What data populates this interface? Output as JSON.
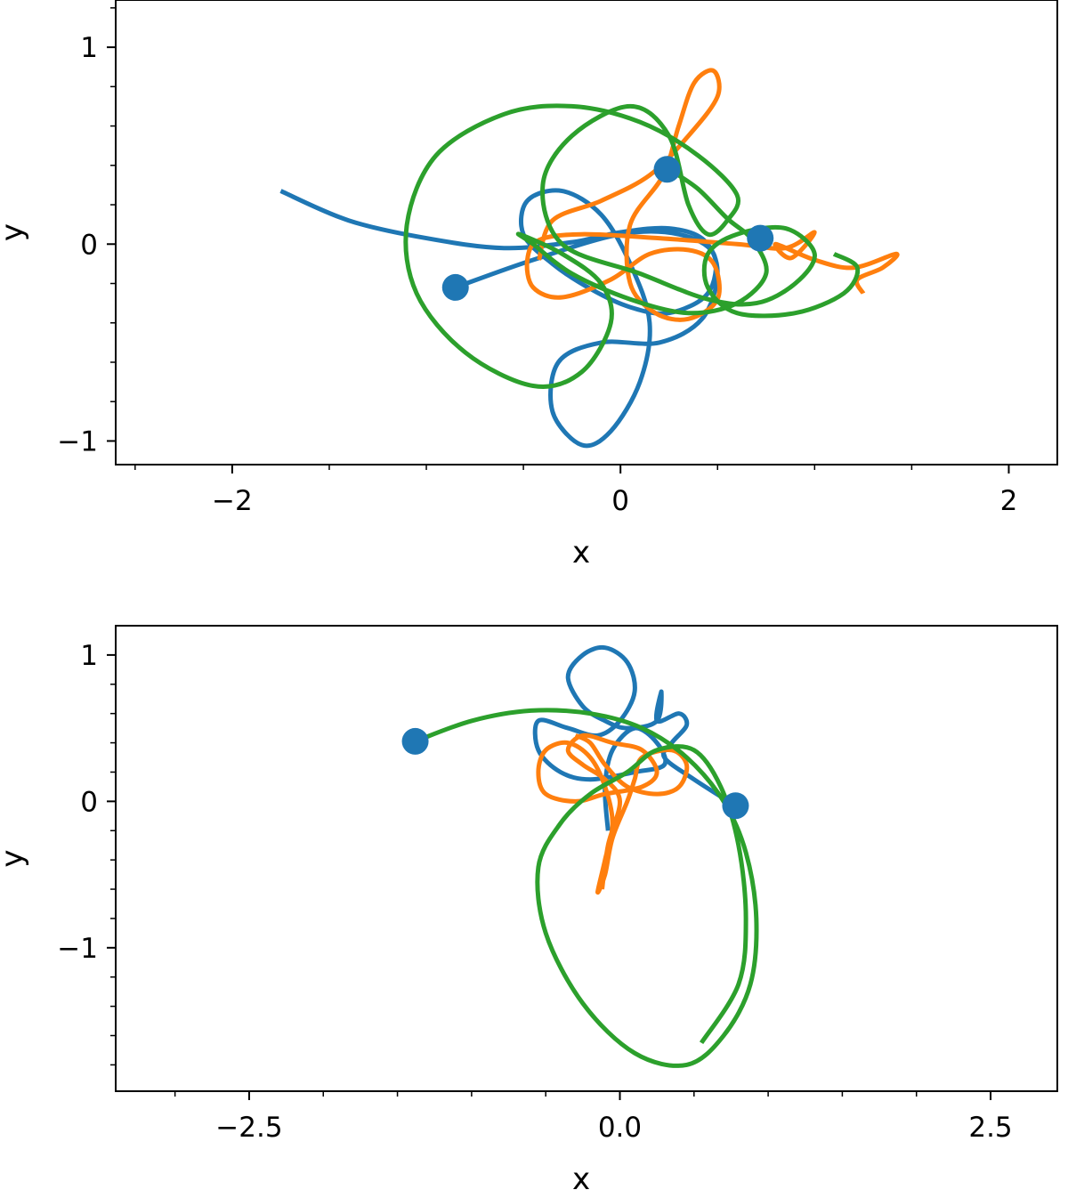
{
  "chart_data": [
    {
      "type": "line",
      "xlabel": "x",
      "ylabel": "y",
      "xlim": [
        -2.6,
        2.25
      ],
      "ylim": [
        -1.12,
        1.24
      ],
      "xticks": [
        {
          "v": -2,
          "label": "−2"
        },
        {
          "v": 0,
          "label": "0"
        },
        {
          "v": 2,
          "label": "2"
        }
      ],
      "yticks": [
        {
          "v": 1,
          "label": "1"
        },
        {
          "v": 0,
          "label": "0"
        },
        {
          "v": -1,
          "label": "−1"
        }
      ],
      "xminor": [
        -2.5,
        -1.5,
        -1,
        -0.5,
        0.5,
        1,
        1.5
      ],
      "yminor": [
        1.2,
        0.8,
        0.6,
        0.4,
        0.2,
        -0.2,
        -0.4,
        -0.6,
        -0.8
      ],
      "series": [
        {
          "color": "#1f77b4",
          "marker": [
            -0.85,
            -0.22
          ],
          "points": [
            [
              -0.85,
              -0.22
            ],
            [
              -0.45,
              -0.08
            ],
            [
              0,
              0.05
            ],
            [
              0.3,
              0.05
            ],
            [
              0.48,
              -0.05
            ],
            [
              0.45,
              -0.25
            ],
            [
              0.25,
              -0.35
            ],
            [
              0.05,
              -0.32
            ],
            [
              -0.15,
              -0.23
            ],
            [
              -0.35,
              -0.1
            ],
            [
              -0.5,
              0.05
            ],
            [
              -0.48,
              0.22
            ],
            [
              -0.3,
              0.27
            ],
            [
              -0.1,
              0.15
            ],
            [
              0.05,
              -0.1
            ],
            [
              0.15,
              -0.4
            ],
            [
              0.1,
              -0.7
            ],
            [
              -0.05,
              -0.95
            ],
            [
              -0.2,
              -1.02
            ],
            [
              -0.35,
              -0.85
            ],
            [
              -0.32,
              -0.6
            ],
            [
              -0.1,
              -0.5
            ],
            [
              0.2,
              -0.5
            ],
            [
              0.42,
              -0.38
            ],
            [
              0.5,
              -0.15
            ],
            [
              0.43,
              0.02
            ],
            [
              0.25,
              0.08
            ],
            [
              0,
              0.06
            ],
            [
              -0.25,
              0.01
            ],
            [
              -0.6,
              -0.02
            ],
            [
              -1.0,
              0.03
            ],
            [
              -1.4,
              0.12
            ],
            [
              -1.75,
              0.27
            ]
          ]
        },
        {
          "color": "#1f77b4",
          "marker": [
            0.24,
            0.38
          ],
          "points": []
        },
        {
          "color": "#1f77b4",
          "marker": [
            0.72,
            0.03
          ],
          "points": []
        },
        {
          "color": "#ff7f0e",
          "points": [
            [
              -0.42,
              -0.08
            ],
            [
              -0.35,
              0.12
            ],
            [
              -0.1,
              0.22
            ],
            [
              0.15,
              0.35
            ],
            [
              0.35,
              0.55
            ],
            [
              0.5,
              0.75
            ],
            [
              0.48,
              0.88
            ],
            [
              0.38,
              0.82
            ],
            [
              0.3,
              0.6
            ],
            [
              0.22,
              0.35
            ],
            [
              0.05,
              0.1
            ],
            [
              0.05,
              -0.2
            ],
            [
              0.18,
              -0.35
            ],
            [
              0.35,
              -0.38
            ],
            [
              0.5,
              -0.28
            ],
            [
              0.48,
              -0.1
            ],
            [
              0.35,
              -0.03
            ],
            [
              0.15,
              -0.05
            ],
            [
              -0.05,
              -0.18
            ],
            [
              -0.3,
              -0.27
            ],
            [
              -0.45,
              -0.22
            ],
            [
              -0.48,
              -0.08
            ],
            [
              -0.42,
              0.02
            ],
            [
              -0.2,
              0.05
            ],
            [
              0.2,
              0.03
            ],
            [
              0.6,
              0
            ],
            [
              0.85,
              -0.02
            ],
            [
              1.0,
              0.06
            ],
            [
              0.88,
              -0.07
            ],
            [
              0.8,
              0
            ],
            [
              1.0,
              -0.08
            ],
            [
              1.2,
              -0.12
            ],
            [
              1.42,
              -0.05
            ],
            [
              1.35,
              -0.12
            ],
            [
              1.22,
              -0.18
            ],
            [
              1.25,
              -0.25
            ]
          ]
        },
        {
          "color": "#2ca02c",
          "points": [
            [
              0.25,
              0.38
            ],
            [
              0.4,
              0.28
            ],
            [
              0.55,
              0.13
            ],
            [
              0.68,
              0.02
            ],
            [
              0.75,
              -0.15
            ],
            [
              0.6,
              -0.3
            ],
            [
              0.35,
              -0.35
            ],
            [
              0.05,
              -0.28
            ],
            [
              -0.25,
              -0.15
            ],
            [
              -0.45,
              0
            ],
            [
              -0.52,
              0.05
            ],
            [
              -0.3,
              -0.05
            ],
            [
              -0.1,
              -0.2
            ],
            [
              -0.05,
              -0.4
            ],
            [
              -0.2,
              -0.65
            ],
            [
              -0.45,
              -0.72
            ],
            [
              -0.8,
              -0.55
            ],
            [
              -1.05,
              -0.25
            ],
            [
              -1.1,
              0.1
            ],
            [
              -0.95,
              0.45
            ],
            [
              -0.6,
              0.66
            ],
            [
              -0.25,
              0.7
            ],
            [
              0.1,
              0.62
            ],
            [
              0.4,
              0.45
            ],
            [
              0.6,
              0.25
            ],
            [
              0.55,
              0.12
            ],
            [
              0.45,
              0.05
            ],
            [
              0.35,
              0.2
            ],
            [
              0.25,
              0.55
            ],
            [
              0.05,
              0.7
            ],
            [
              -0.25,
              0.55
            ],
            [
              -0.4,
              0.3
            ],
            [
              -0.3,
              0
            ],
            [
              0.1,
              -0.15
            ],
            [
              0.45,
              -0.28
            ],
            [
              0.7,
              -0.3
            ],
            [
              0.9,
              -0.2
            ],
            [
              1,
              -0.05
            ],
            [
              0.85,
              0.08
            ],
            [
              0.6,
              0.05
            ],
            [
              0.45,
              -0.05
            ],
            [
              0.45,
              -0.22
            ],
            [
              0.6,
              -0.35
            ],
            [
              0.9,
              -0.35
            ],
            [
              1.15,
              -0.25
            ],
            [
              1.22,
              -0.12
            ],
            [
              1.1,
              -0.05
            ]
          ]
        }
      ]
    },
    {
      "type": "line",
      "xlabel": "x",
      "ylabel": "y",
      "xlim": [
        -3.4,
        2.95
      ],
      "ylim": [
        -1.98,
        1.2
      ],
      "xticks": [
        {
          "v": -2.5,
          "label": "−2.5"
        },
        {
          "v": 0,
          "label": "0.0"
        },
        {
          "v": 2.5,
          "label": "2.5"
        }
      ],
      "yticks": [
        {
          "v": 1,
          "label": "1"
        },
        {
          "v": 0,
          "label": "0"
        },
        {
          "v": -1,
          "label": "−1"
        }
      ],
      "xminor": [
        -3,
        -2,
        -1.5,
        -1,
        -0.5,
        0.5,
        1,
        1.5,
        2
      ],
      "yminor": [
        0.8,
        0.6,
        0.4,
        0.2,
        -0.2,
        -0.4,
        -0.6,
        -0.8,
        -1.2,
        -1.4,
        -1.6,
        -1.8
      ],
      "series": [
        {
          "color": "#1f77b4",
          "marker": [
            0.78,
            -0.03
          ],
          "points": [
            [
              0.78,
              -0.03
            ],
            [
              0.5,
              0.15
            ],
            [
              0.3,
              0.3
            ],
            [
              0.35,
              0.4
            ],
            [
              0.45,
              0.52
            ],
            [
              0.4,
              0.6
            ],
            [
              0.25,
              0.55
            ],
            [
              0.28,
              0.75
            ],
            [
              0.25,
              0.55
            ],
            [
              0.05,
              0.5
            ],
            [
              -0.1,
              0.55
            ],
            [
              -0.25,
              0.65
            ],
            [
              -0.35,
              0.85
            ],
            [
              -0.25,
              1.0
            ],
            [
              -0.1,
              1.05
            ],
            [
              0.05,
              0.95
            ],
            [
              0.1,
              0.75
            ],
            [
              0,
              0.55
            ],
            [
              -0.15,
              0.45
            ],
            [
              -0.35,
              0.5
            ],
            [
              -0.55,
              0.55
            ],
            [
              -0.55,
              0.35
            ],
            [
              -0.4,
              0.2
            ],
            [
              -0.2,
              0.15
            ],
            [
              0.1,
              0.2
            ],
            [
              0.3,
              0.25
            ],
            [
              0.25,
              0.4
            ],
            [
              0.1,
              0.5
            ],
            [
              -0.05,
              0.35
            ],
            [
              -0.1,
              0.1
            ],
            [
              -0.08,
              -0.2
            ]
          ]
        },
        {
          "color": "#1f77b4",
          "marker": [
            -1.38,
            0.41
          ],
          "points": []
        },
        {
          "color": "#ff7f0e",
          "points": [
            [
              -0.12,
              -0.6
            ],
            [
              -0.08,
              -0.3
            ],
            [
              0,
              0
            ],
            [
              -0.1,
              0.15
            ],
            [
              -0.25,
              0.25
            ],
            [
              -0.35,
              0.35
            ],
            [
              -0.25,
              0.45
            ],
            [
              -0.05,
              0.4
            ],
            [
              0.15,
              0.35
            ],
            [
              0.25,
              0.2
            ],
            [
              0.15,
              0.1
            ],
            [
              -0.1,
              0.05
            ],
            [
              -0.3,
              0
            ],
            [
              -0.5,
              0.05
            ],
            [
              -0.55,
              0.2
            ],
            [
              -0.5,
              0.35
            ],
            [
              -0.35,
              0.4
            ],
            [
              -0.2,
              0.3
            ],
            [
              -0.1,
              0.1
            ],
            [
              -0.05,
              -0.15
            ],
            [
              -0.1,
              -0.4
            ],
            [
              -0.15,
              -0.62
            ],
            [
              -0.1,
              -0.5
            ],
            [
              -0.05,
              -0.25
            ],
            [
              0.05,
              0
            ],
            [
              0.1,
              0.15
            ],
            [
              0.15,
              0.3
            ],
            [
              0.35,
              0.35
            ],
            [
              0.45,
              0.25
            ],
            [
              0.4,
              0.1
            ],
            [
              0.25,
              0.05
            ],
            [
              0.05,
              0.1
            ],
            [
              -0.1,
              0.25
            ],
            [
              -0.2,
              0.4
            ],
            [
              -0.3,
              0.45
            ]
          ]
        },
        {
          "color": "#2ca02c",
          "points": [
            [
              -1.38,
              0.41
            ],
            [
              -1.0,
              0.55
            ],
            [
              -0.6,
              0.62
            ],
            [
              -0.2,
              0.6
            ],
            [
              0.15,
              0.5
            ],
            [
              0.45,
              0.3
            ],
            [
              0.7,
              0
            ],
            [
              0.85,
              -0.35
            ],
            [
              0.92,
              -0.8
            ],
            [
              0.88,
              -1.25
            ],
            [
              0.7,
              -1.6
            ],
            [
              0.45,
              -1.8
            ],
            [
              0.1,
              -1.72
            ],
            [
              -0.25,
              -1.38
            ],
            [
              -0.5,
              -0.9
            ],
            [
              -0.55,
              -0.45
            ],
            [
              -0.4,
              -0.15
            ],
            [
              -0.2,
              0.05
            ],
            [
              0.05,
              0.2
            ],
            [
              0.25,
              0.35
            ],
            [
              0.5,
              0.35
            ],
            [
              0.68,
              0.1
            ],
            [
              0.8,
              -0.3
            ],
            [
              0.85,
              -0.8
            ],
            [
              0.8,
              -1.25
            ],
            [
              0.55,
              -1.65
            ]
          ]
        }
      ]
    }
  ]
}
